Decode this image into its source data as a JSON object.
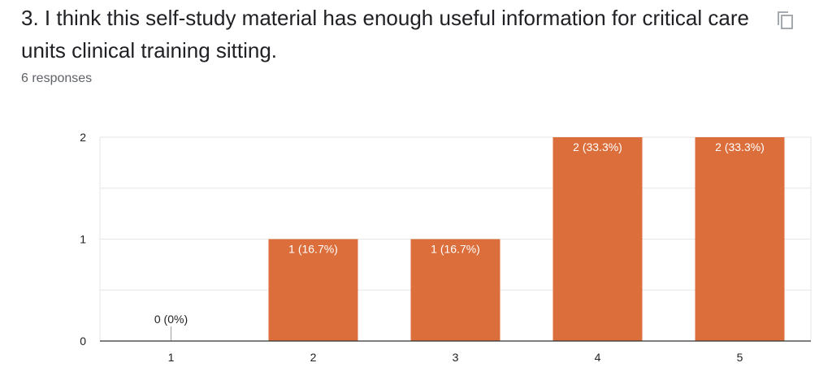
{
  "question": {
    "title": "3. I think this self-study material has enough useful information for critical care units clinical training sitting.",
    "responses": "6 responses"
  },
  "icons": {
    "copy": "copy-icon"
  },
  "colors": {
    "bar": "#db6e3b",
    "grid": "#e6e6e6",
    "axis": "#333333"
  },
  "chart_data": {
    "type": "bar",
    "categories": [
      "1",
      "2",
      "3",
      "4",
      "5"
    ],
    "values": [
      0,
      1,
      1,
      2,
      2
    ],
    "data_labels": [
      "0 (0%)",
      "1 (16.7%)",
      "1 (16.7%)",
      "2 (33.3%)",
      "2 (33.3%)"
    ],
    "y_ticks": [
      0,
      1,
      2
    ],
    "ylim": [
      0,
      2
    ],
    "grid": true,
    "title": "",
    "xlabel": "",
    "ylabel": ""
  }
}
